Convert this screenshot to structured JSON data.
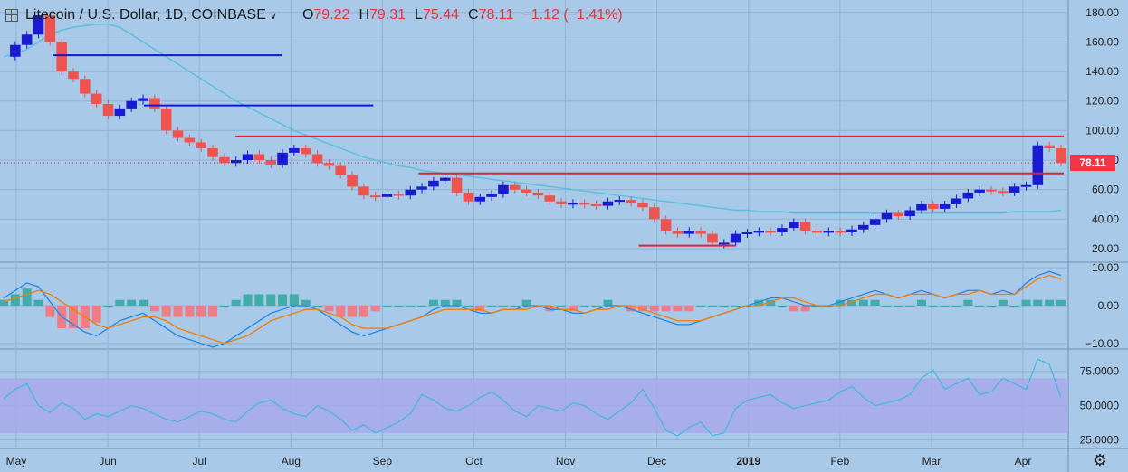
{
  "header": {
    "symbol": "Litecoin / U.S. Dollar, 1D, COINBASE",
    "open_label": "O",
    "open": "79.22",
    "high_label": "H",
    "high": "79.31",
    "low_label": "L",
    "low": "75.44",
    "close_label": "C",
    "close": "78.11",
    "change": "−1.12 (−1.41%)"
  },
  "last_price_tag": "78.11",
  "colors": {
    "up": "#1a1ad0",
    "down": "#ef5350",
    "ma": "#5bc0de",
    "level_blue": "#1414d6",
    "level_red": "#e8202a",
    "bg": "#a9c9e8",
    "rsi_band": "#a8a8e8"
  },
  "icons": {
    "settings": "gear-icon",
    "symbol": "crosshair-icon"
  },
  "chart_data": [
    {
      "type": "candlestick",
      "title": "Litecoin / U.S. Dollar, 1D, COINBASE",
      "x_tick_labels": [
        "May",
        "Jun",
        "Jul",
        "Aug",
        "Sep",
        "Oct",
        "Nov",
        "Dec",
        "2019",
        "Feb",
        "Mar",
        "Apr"
      ],
      "y_tick_labels": [
        "180.00",
        "160.00",
        "140.00",
        "120.00",
        "100.00",
        "80.00",
        "60.00",
        "40.00",
        "20.00"
      ],
      "ylim": [
        12,
        186
      ],
      "close_weekly": [
        150,
        158,
        165,
        178,
        160,
        140,
        135,
        125,
        118,
        110,
        115,
        120,
        122,
        115,
        100,
        95,
        92,
        88,
        82,
        78,
        80,
        84,
        80,
        77,
        85,
        88,
        84,
        78,
        76,
        70,
        62,
        56,
        55,
        57,
        56,
        60,
        62,
        66,
        68,
        58,
        52,
        55,
        57,
        63,
        60,
        58,
        56,
        52,
        50,
        51,
        50,
        49,
        52,
        53,
        51,
        48,
        40,
        32,
        30,
        32,
        30,
        24,
        24,
        30,
        31,
        32,
        31,
        34,
        38,
        32,
        31,
        32,
        31,
        33,
        36,
        40,
        44,
        42,
        46,
        50,
        47,
        50,
        54,
        58,
        60,
        59,
        58,
        62,
        63,
        90,
        88,
        78
      ],
      "ma_200": [
        150,
        152,
        155,
        160,
        165,
        168,
        170,
        171,
        172,
        172,
        170,
        165,
        160,
        155,
        150,
        145,
        140,
        135,
        130,
        125,
        120,
        116,
        112,
        108,
        104,
        100,
        97,
        94,
        91,
        88,
        85,
        82,
        80,
        78,
        76,
        75,
        73,
        72,
        71,
        70,
        69,
        68,
        67,
        66,
        65,
        64,
        63,
        62,
        61,
        60,
        59,
        58,
        57,
        56,
        55,
        54,
        53,
        52,
        51,
        50,
        49,
        48,
        47,
        46,
        46,
        45,
        45,
        45,
        44,
        44,
        44,
        44,
        44,
        44,
        44,
        44,
        44,
        44,
        44,
        44,
        44,
        44,
        44,
        44,
        44,
        44,
        44,
        45,
        45,
        45,
        45,
        46
      ],
      "levels": [
        {
          "color": "blue",
          "value": 151,
          "from_month": "May",
          "to_month": "Aug"
        },
        {
          "color": "blue",
          "value": 117,
          "from_month": "Jun",
          "to_month": "Sep"
        },
        {
          "color": "red",
          "value": 96,
          "from_month": "Jul",
          "to_month": "Apr"
        },
        {
          "color": "red",
          "value": 71,
          "from_month": "Sep",
          "to_month": "Apr"
        },
        {
          "color": "red",
          "value": 22,
          "from_month": "Dec",
          "to_month": "2019"
        }
      ]
    },
    {
      "type": "line",
      "title": "",
      "y_tick_labels": [
        "10.00",
        "0.00",
        "−10.00"
      ],
      "ylim": [
        -11,
        11
      ],
      "series": [
        {
          "values": [
            2,
            4,
            6,
            5,
            1,
            -3,
            -5,
            -7,
            -8,
            -6,
            -4,
            -3,
            -2,
            -4,
            -6,
            -8,
            -9,
            -10,
            -11,
            -10,
            -8,
            -6,
            -4,
            -2,
            -1,
            0,
            0,
            -1,
            -3,
            -5,
            -7,
            -8,
            -7,
            -6,
            -5,
            -4,
            -3,
            -1,
            0,
            0,
            -1,
            -2,
            -2,
            -1,
            -1,
            0,
            0,
            -1,
            -1,
            -2,
            -2,
            -1,
            0,
            0,
            -1,
            -2,
            -3,
            -4,
            -5,
            -5,
            -4,
            -3,
            -2,
            -1,
            0,
            1,
            2,
            2,
            1,
            0,
            0,
            0,
            1,
            2,
            3,
            4,
            3,
            2,
            3,
            4,
            3,
            2,
            3,
            4,
            4,
            3,
            4,
            3,
            6,
            8,
            9,
            8
          ]
        },
        {
          "values": [
            1,
            2,
            3,
            4,
            3,
            1,
            -1,
            -3,
            -5,
            -6,
            -5,
            -4,
            -3,
            -3,
            -4,
            -6,
            -7,
            -8,
            -9,
            -10,
            -9,
            -8,
            -6,
            -4,
            -3,
            -2,
            -1,
            -1,
            -2,
            -3,
            -5,
            -6,
            -6,
            -6,
            -5,
            -4,
            -3,
            -2,
            -1,
            -1,
            -1,
            -1,
            -2,
            -1,
            -1,
            -1,
            0,
            0,
            -1,
            -1,
            -2,
            -1,
            -1,
            0,
            0,
            -1,
            -2,
            -3,
            -4,
            -4,
            -4,
            -3,
            -2,
            -1,
            0,
            0,
            1,
            2,
            2,
            1,
            0,
            0,
            0,
            1,
            2,
            3,
            3,
            2,
            3,
            3,
            3,
            2,
            3,
            3,
            4,
            3,
            3,
            3,
            5,
            7,
            8,
            7
          ]
        }
      ]
    },
    {
      "type": "line",
      "title": "",
      "y_tick_labels": [
        "75.0000",
        "50.0000",
        "25.0000"
      ],
      "ylim": [
        20,
        90
      ],
      "band": [
        30,
        70
      ],
      "values": [
        55,
        62,
        66,
        50,
        45,
        52,
        48,
        40,
        44,
        42,
        46,
        50,
        48,
        44,
        40,
        38,
        42,
        46,
        44,
        40,
        38,
        46,
        52,
        54,
        48,
        44,
        42,
        50,
        46,
        40,
        32,
        36,
        30,
        34,
        38,
        44,
        58,
        54,
        48,
        46,
        50,
        56,
        60,
        54,
        46,
        42,
        50,
        48,
        46,
        52,
        50,
        44,
        40,
        46,
        52,
        62,
        48,
        32,
        28,
        34,
        38,
        28,
        30,
        48,
        54,
        56,
        58,
        52,
        48,
        50,
        52,
        54,
        60,
        64,
        56,
        50,
        52,
        54,
        58,
        70,
        76,
        62,
        66,
        70,
        58,
        60,
        70,
        66,
        62,
        84,
        80,
        56
      ]
    }
  ]
}
